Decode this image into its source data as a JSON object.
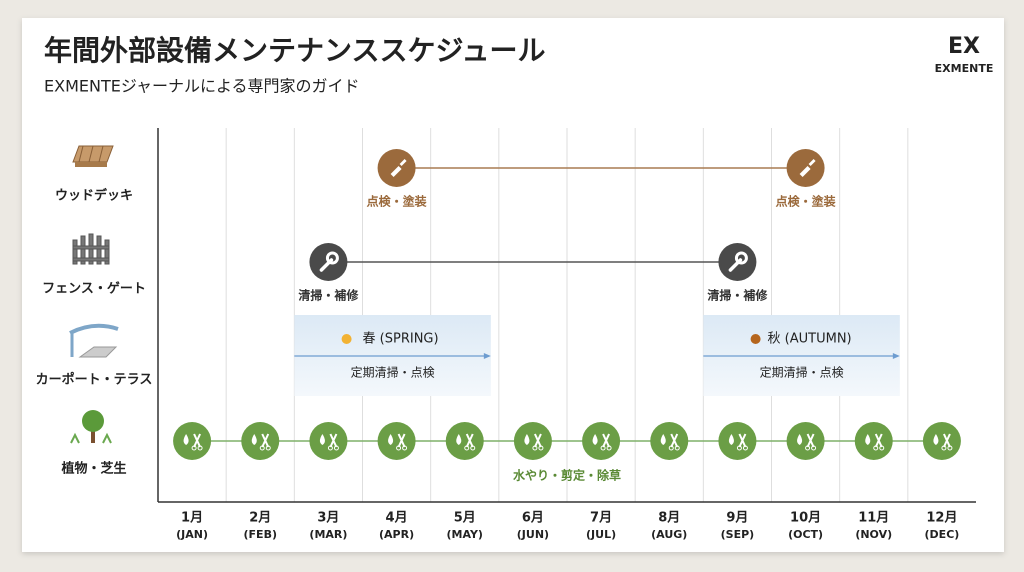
{
  "header": {
    "title": "年間外部設備メンテナンススケジュール",
    "subtitle": "EXMENTEジャーナルによる専門家のガイド"
  },
  "logo": {
    "mark": "EX",
    "name": "EXMENTE"
  },
  "rows": [
    {
      "label": "ウッドデッキ",
      "task": "点検・塗装"
    },
    {
      "label": "フェンス・ゲート",
      "task": "清掃・補修"
    },
    {
      "label": "カーポート・テラス",
      "seasons": [
        {
          "name": "春 (SPRING)",
          "task": "定期清掃・点検"
        },
        {
          "name": "秋 (AUTUMN)",
          "task": "定期清掃・点検"
        }
      ]
    },
    {
      "label": "植物・芝生",
      "task": "水やり・剪定・除草"
    }
  ],
  "months": [
    {
      "label": "1月",
      "sub": "(JAN)"
    },
    {
      "label": "2月",
      "sub": "(FEB)"
    },
    {
      "label": "3月",
      "sub": "(MAR)"
    },
    {
      "label": "4月",
      "sub": "(APR)"
    },
    {
      "label": "5月",
      "sub": "(MAY)"
    },
    {
      "label": "6月",
      "sub": "(JUN)"
    },
    {
      "label": "7月",
      "sub": "(JUL)"
    },
    {
      "label": "8月",
      "sub": "(AUG)"
    },
    {
      "label": "9月",
      "sub": "(SEP)"
    },
    {
      "label": "10月",
      "sub": "(OCT)"
    },
    {
      "label": "11月",
      "sub": "(NOV)"
    },
    {
      "label": "12月",
      "sub": "(DEC)"
    }
  ]
}
